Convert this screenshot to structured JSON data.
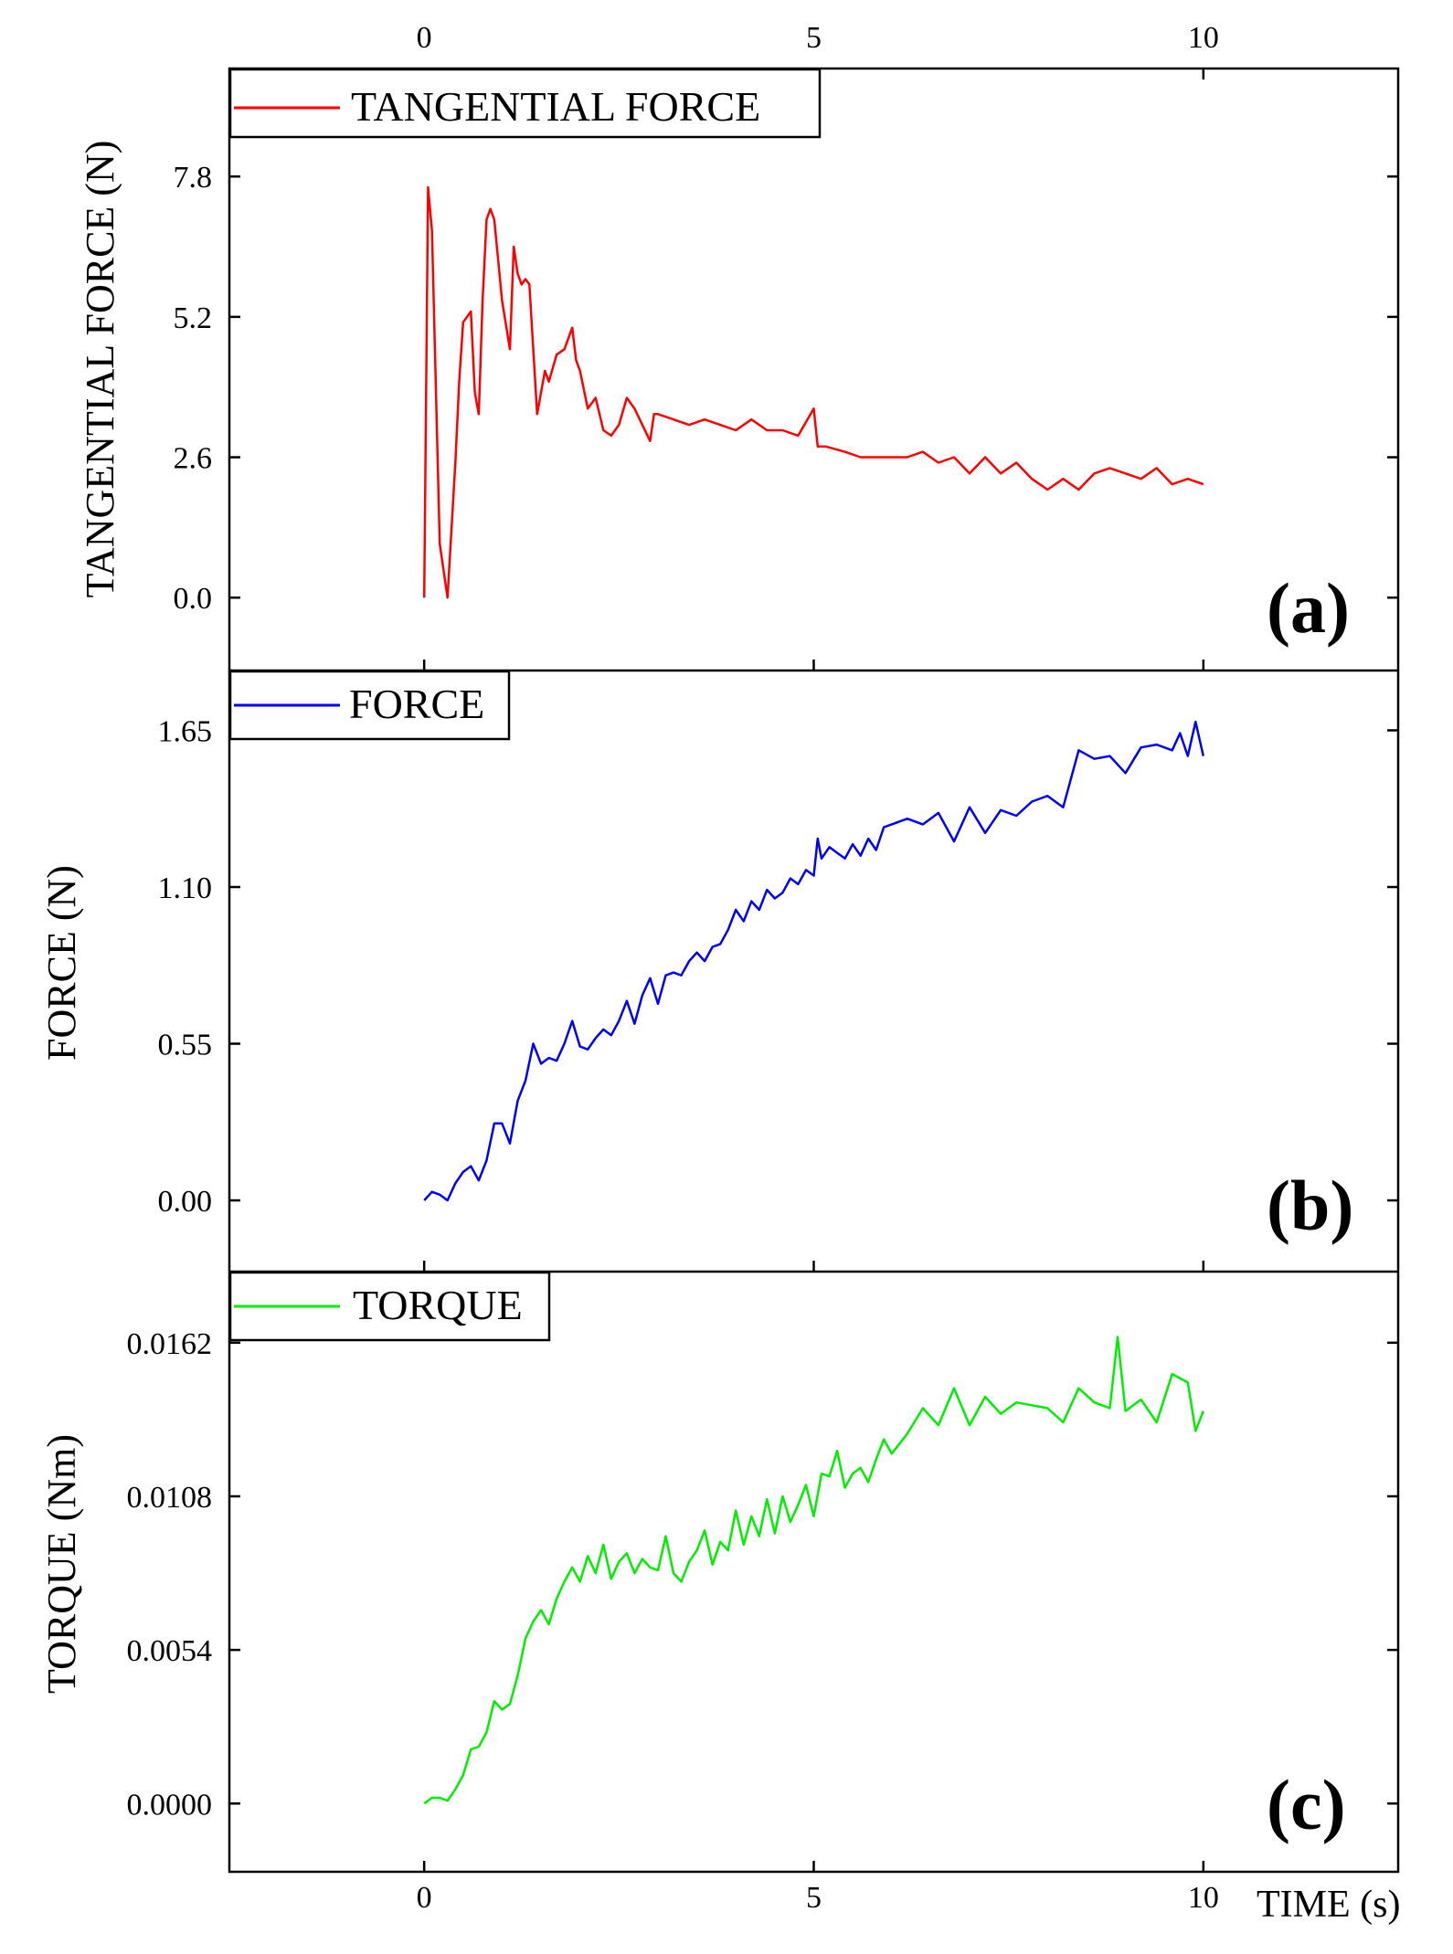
{
  "figure": {
    "x_axis_title": "TIME (s)",
    "x_ticks": [
      0,
      5,
      10
    ],
    "x_range": [
      -2.5,
      12.5
    ]
  },
  "chart_data": [
    {
      "type": "line",
      "panel": "(a)",
      "legend": "TANGENTIAL FORCE",
      "ylabel": "TANGENTIAL FORCE (N)",
      "xlabel": "TIME (s)",
      "color": "#ff0000",
      "ylim": [
        -1.35,
        9.8
      ],
      "yticks": [
        "0.0",
        "2.6",
        "5.2",
        "7.8"
      ],
      "ytick_values": [
        0,
        2.6,
        5.2,
        7.8
      ],
      "x": [
        0,
        0.05,
        0.1,
        0.2,
        0.3,
        0.4,
        0.45,
        0.5,
        0.6,
        0.65,
        0.7,
        0.75,
        0.8,
        0.85,
        0.9,
        1.0,
        1.1,
        1.15,
        1.2,
        1.25,
        1.3,
        1.35,
        1.45,
        1.55,
        1.6,
        1.7,
        1.8,
        1.9,
        1.95,
        2.0,
        2.1,
        2.2,
        2.3,
        2.4,
        2.5,
        2.6,
        2.7,
        2.8,
        2.9,
        2.95,
        3.0,
        3.2,
        3.4,
        3.6,
        3.8,
        4.0,
        4.2,
        4.4,
        4.6,
        4.8,
        5.0,
        5.05,
        5.15,
        5.4,
        5.6,
        5.8,
        6.0,
        6.2,
        6.4,
        6.6,
        6.8,
        7.0,
        7.2,
        7.4,
        7.6,
        7.8,
        8.0,
        8.2,
        8.4,
        8.6,
        8.8,
        9.0,
        9.2,
        9.4,
        9.6,
        9.8,
        10.0
      ],
      "y": [
        0.0,
        7.6,
        6.8,
        1.0,
        0.0,
        2.5,
        4.0,
        5.1,
        5.3,
        3.8,
        3.4,
        5.5,
        7.0,
        7.2,
        7.0,
        5.5,
        4.6,
        6.5,
        6.0,
        5.8,
        5.9,
        5.8,
        3.4,
        4.2,
        4.0,
        4.5,
        4.6,
        5.0,
        4.4,
        4.2,
        3.5,
        3.7,
        3.1,
        3.0,
        3.2,
        3.7,
        3.5,
        3.2,
        2.9,
        3.4,
        3.4,
        3.3,
        3.2,
        3.3,
        3.2,
        3.1,
        3.3,
        3.1,
        3.1,
        3.0,
        3.5,
        2.8,
        2.8,
        2.7,
        2.6,
        2.6,
        2.6,
        2.6,
        2.7,
        2.5,
        2.6,
        2.3,
        2.6,
        2.3,
        2.5,
        2.2,
        2.0,
        2.2,
        2.0,
        2.3,
        2.4,
        2.3,
        2.2,
        2.4,
        2.1,
        2.2,
        2.1
      ]
    },
    {
      "type": "line",
      "panel": "(b)",
      "legend": "FORCE",
      "ylabel": "FORCE (N)",
      "xlabel": "TIME (s)",
      "color": "#0000ff",
      "ylim": [
        -0.25,
        1.86
      ],
      "yticks": [
        "0.00",
        "0.55",
        "1.10",
        "1.65"
      ],
      "ytick_values": [
        0,
        0.55,
        1.1,
        1.65
      ],
      "x": [
        0,
        0.1,
        0.2,
        0.3,
        0.4,
        0.5,
        0.6,
        0.7,
        0.8,
        0.9,
        1.0,
        1.1,
        1.2,
        1.3,
        1.4,
        1.5,
        1.6,
        1.7,
        1.8,
        1.9,
        2.0,
        2.1,
        2.2,
        2.3,
        2.4,
        2.5,
        2.6,
        2.7,
        2.8,
        2.9,
        3.0,
        3.1,
        3.2,
        3.3,
        3.4,
        3.5,
        3.6,
        3.7,
        3.8,
        3.9,
        4.0,
        4.1,
        4.2,
        4.3,
        4.4,
        4.5,
        4.6,
        4.7,
        4.8,
        4.9,
        5.0,
        5.05,
        5.1,
        5.2,
        5.3,
        5.4,
        5.5,
        5.6,
        5.7,
        5.8,
        5.9,
        6.0,
        6.2,
        6.4,
        6.6,
        6.8,
        7.0,
        7.2,
        7.4,
        7.6,
        7.8,
        8.0,
        8.2,
        8.4,
        8.6,
        8.8,
        9.0,
        9.2,
        9.4,
        9.6,
        9.7,
        9.8,
        9.9,
        10.0
      ],
      "y": [
        0.0,
        0.03,
        0.02,
        0.0,
        0.06,
        0.1,
        0.12,
        0.07,
        0.14,
        0.27,
        0.27,
        0.2,
        0.35,
        0.42,
        0.55,
        0.48,
        0.5,
        0.49,
        0.55,
        0.63,
        0.54,
        0.53,
        0.57,
        0.6,
        0.58,
        0.63,
        0.7,
        0.62,
        0.72,
        0.78,
        0.69,
        0.79,
        0.8,
        0.79,
        0.84,
        0.87,
        0.84,
        0.89,
        0.9,
        0.95,
        1.02,
        0.98,
        1.05,
        1.02,
        1.09,
        1.06,
        1.08,
        1.13,
        1.11,
        1.16,
        1.14,
        1.27,
        1.2,
        1.24,
        1.22,
        1.2,
        1.25,
        1.21,
        1.27,
        1.23,
        1.31,
        1.32,
        1.34,
        1.32,
        1.36,
        1.26,
        1.38,
        1.29,
        1.37,
        1.35,
        1.4,
        1.42,
        1.38,
        1.58,
        1.55,
        1.56,
        1.5,
        1.59,
        1.6,
        1.58,
        1.64,
        1.56,
        1.68,
        1.56
      ]
    },
    {
      "type": "line",
      "panel": "(c)",
      "legend": "TORQUE",
      "ylabel": "TORQUE (Nm)",
      "xlabel": "TIME (s)",
      "color": "#00ee00",
      "ylim": [
        -0.0024,
        0.0187
      ],
      "yticks": [
        "0.0000",
        "0.0054",
        "0.0108",
        "0.0162"
      ],
      "ytick_values": [
        0,
        0.0054,
        0.0108,
        0.0162
      ],
      "x": [
        0,
        0.1,
        0.2,
        0.3,
        0.4,
        0.5,
        0.6,
        0.7,
        0.8,
        0.9,
        1.0,
        1.1,
        1.2,
        1.3,
        1.4,
        1.5,
        1.6,
        1.7,
        1.8,
        1.9,
        2.0,
        2.1,
        2.2,
        2.3,
        2.4,
        2.5,
        2.6,
        2.7,
        2.8,
        2.9,
        3.0,
        3.1,
        3.2,
        3.3,
        3.4,
        3.5,
        3.6,
        3.7,
        3.8,
        3.9,
        4.0,
        4.1,
        4.2,
        4.3,
        4.4,
        4.5,
        4.6,
        4.7,
        4.8,
        4.9,
        5.0,
        5.1,
        5.2,
        5.3,
        5.4,
        5.5,
        5.6,
        5.7,
        5.8,
        5.9,
        6.0,
        6.2,
        6.4,
        6.6,
        6.8,
        7.0,
        7.2,
        7.4,
        7.6,
        7.8,
        8.0,
        8.2,
        8.4,
        8.6,
        8.8,
        8.9,
        9.0,
        9.2,
        9.4,
        9.6,
        9.8,
        9.9,
        10.0
      ],
      "y": [
        0.0,
        0.0002,
        0.0002,
        0.0001,
        0.0005,
        0.001,
        0.0019,
        0.002,
        0.0025,
        0.0036,
        0.0033,
        0.0035,
        0.0045,
        0.0058,
        0.0064,
        0.0068,
        0.0063,
        0.0072,
        0.0078,
        0.0083,
        0.0078,
        0.0087,
        0.0081,
        0.0091,
        0.0079,
        0.0085,
        0.0088,
        0.0081,
        0.0086,
        0.0083,
        0.0082,
        0.0094,
        0.0081,
        0.0078,
        0.0085,
        0.0089,
        0.0096,
        0.0084,
        0.0092,
        0.0089,
        0.0103,
        0.0091,
        0.0101,
        0.0094,
        0.0107,
        0.0095,
        0.0108,
        0.0099,
        0.0105,
        0.0112,
        0.0101,
        0.0116,
        0.0115,
        0.0124,
        0.0111,
        0.0116,
        0.0118,
        0.0113,
        0.0121,
        0.0128,
        0.0123,
        0.013,
        0.0139,
        0.0133,
        0.0146,
        0.0133,
        0.0143,
        0.0137,
        0.0141,
        0.014,
        0.0139,
        0.0134,
        0.0146,
        0.0141,
        0.0139,
        0.0164,
        0.0138,
        0.0142,
        0.0134,
        0.0151,
        0.0148,
        0.0131,
        0.0138
      ]
    }
  ]
}
